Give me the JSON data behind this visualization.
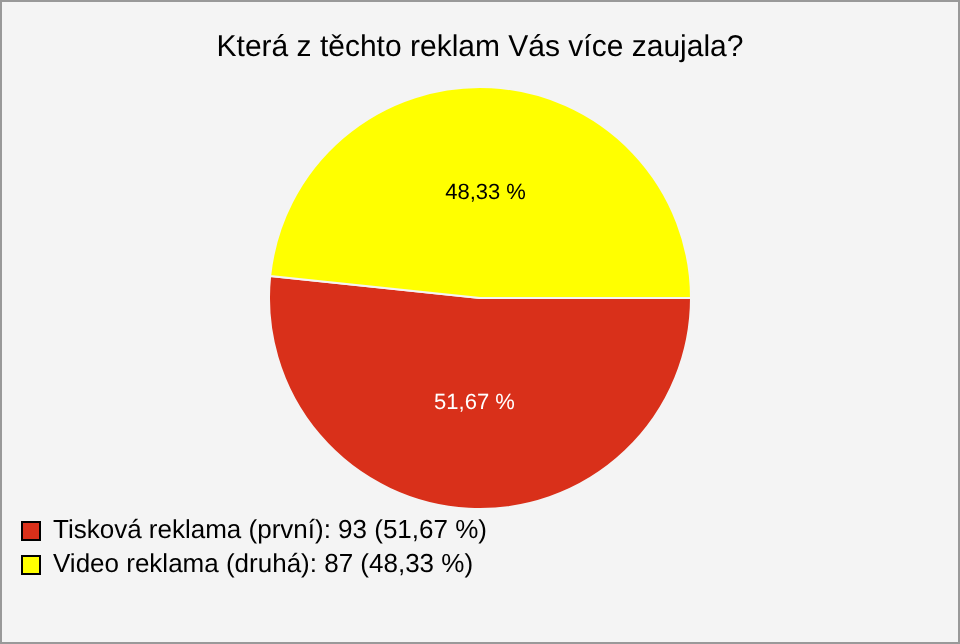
{
  "chart_data": {
    "type": "pie",
    "title": "Která z těchto reklam Vás více zaujala?",
    "categories": [
      "Tisková reklama (první): 93 (51,67 %)",
      "Video reklama (druhá): 87 (48,33 %)"
    ],
    "values": [
      51.67,
      48.33
    ],
    "colors": [
      "#d9301a",
      "#ffff00"
    ],
    "value_labels": [
      "51,67 %",
      "48,33 %"
    ],
    "legend": "bottom left"
  }
}
